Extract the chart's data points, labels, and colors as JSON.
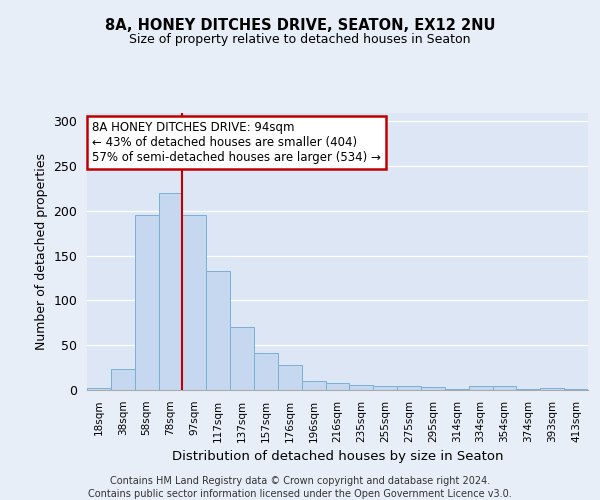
{
  "title1": "8A, HONEY DITCHES DRIVE, SEATON, EX12 2NU",
  "title2": "Size of property relative to detached houses in Seaton",
  "xlabel": "Distribution of detached houses by size in Seaton",
  "ylabel": "Number of detached properties",
  "bar_labels": [
    "18sqm",
    "38sqm",
    "58sqm",
    "78sqm",
    "97sqm",
    "117sqm",
    "137sqm",
    "157sqm",
    "176sqm",
    "196sqm",
    "216sqm",
    "235sqm",
    "255sqm",
    "275sqm",
    "295sqm",
    "314sqm",
    "334sqm",
    "354sqm",
    "374sqm",
    "393sqm",
    "413sqm"
  ],
  "bar_heights": [
    2,
    24,
    196,
    220,
    195,
    133,
    70,
    41,
    28,
    10,
    8,
    6,
    4,
    4,
    3,
    1,
    5,
    4,
    1,
    2,
    1
  ],
  "bar_color": "#c5d8f0",
  "bar_edge_color": "#7bafd4",
  "vline_x": 3.5,
  "vline_color": "#c00000",
  "annotation_text": "8A HONEY DITCHES DRIVE: 94sqm\n← 43% of detached houses are smaller (404)\n57% of semi-detached houses are larger (534) →",
  "annotation_box_color": "white",
  "annotation_box_edge": "#c00000",
  "ylim": [
    0,
    310
  ],
  "yticks": [
    0,
    50,
    100,
    150,
    200,
    250,
    300
  ],
  "footer1": "Contains HM Land Registry data © Crown copyright and database right 2024.",
  "footer2": "Contains public sector information licensed under the Open Government Licence v3.0.",
  "bg_color": "#e8eef8",
  "plot_bg_color": "#dce6f5"
}
